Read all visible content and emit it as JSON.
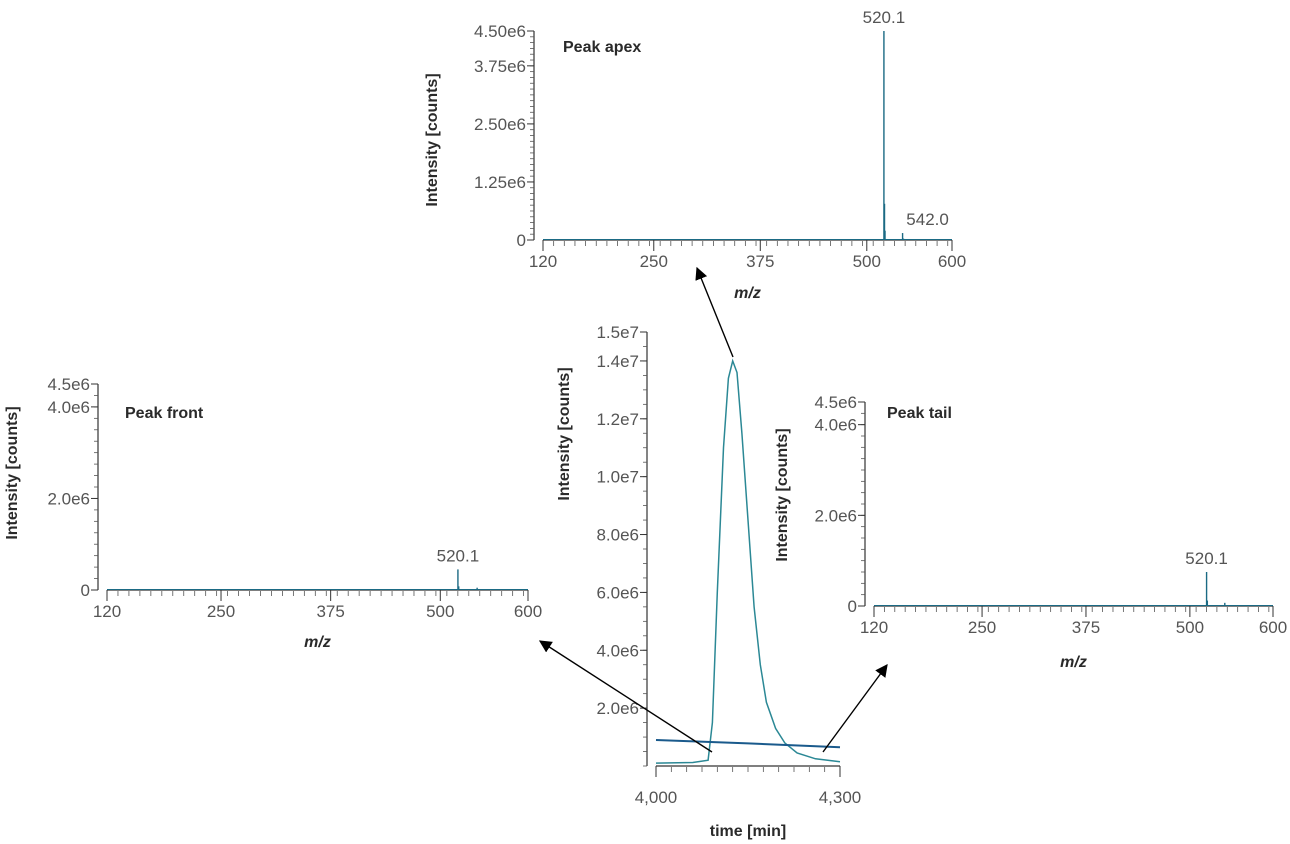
{
  "colors": {
    "spectrum": "#1b6a84",
    "chromatogram": "#2b8895",
    "baseline_trace": "#1a5a8c",
    "arrow": "#000000",
    "axis": "#333333"
  },
  "chart_data": [
    {
      "id": "peak-apex",
      "type": "bar",
      "title": "Peak apex",
      "xlabel": "m/z",
      "ylabel": "Intensity [counts]",
      "xlim": [
        120,
        600
      ],
      "ylim": [
        0,
        4500000
      ],
      "xticks": [
        120,
        250,
        375,
        500,
        600
      ],
      "xtick_labels": [
        "120",
        "250",
        "375",
        "500",
        "600"
      ],
      "yticks": [
        0,
        1250000,
        2500000,
        3750000,
        4500000
      ],
      "ytick_labels": [
        "0",
        "1.25e6",
        "2.50e6",
        "3.75e6",
        "4.50e6"
      ],
      "peaks": [
        {
          "x": 520.1,
          "y": 4500000
        },
        {
          "x": 520.8,
          "y": 780000
        },
        {
          "x": 521.4,
          "y": 200000
        },
        {
          "x": 542.0,
          "y": 150000
        },
        {
          "x": 543.0,
          "y": 30000
        },
        {
          "x": 552.0,
          "y": 20000
        }
      ],
      "annotations": [
        {
          "x": 520.1,
          "y": 4500000,
          "text": "520.1"
        },
        {
          "x": 542.0,
          "y": 150000,
          "text": "542.0"
        }
      ]
    },
    {
      "id": "peak-front",
      "type": "bar",
      "title": "Peak front",
      "xlabel": "m/z",
      "ylabel": "Intensity [counts]",
      "xlim": [
        120,
        600
      ],
      "ylim": [
        0,
        4500000
      ],
      "xticks": [
        120,
        250,
        375,
        500,
        600
      ],
      "xtick_labels": [
        "120",
        "250",
        "375",
        "500",
        "600"
      ],
      "yticks": [
        0,
        2000000,
        4000000,
        4500000
      ],
      "ytick_labels": [
        "0",
        "2.0e6",
        "4.0e6",
        "4.5e6"
      ],
      "peaks": [
        {
          "x": 520.1,
          "y": 450000
        },
        {
          "x": 521.0,
          "y": 80000
        },
        {
          "x": 542.0,
          "y": 50000
        }
      ],
      "annotations": [
        {
          "x": 520.1,
          "y": 450000,
          "text": "520.1"
        }
      ]
    },
    {
      "id": "peak-tail",
      "type": "bar",
      "title": "Peak tail",
      "xlabel": "m/z",
      "ylabel": "Intensity [counts]",
      "xlim": [
        120,
        600
      ],
      "ylim": [
        0,
        4500000
      ],
      "xticks": [
        120,
        250,
        375,
        500,
        600
      ],
      "xtick_labels": [
        "120",
        "250",
        "375",
        "500",
        "600"
      ],
      "yticks": [
        0,
        2000000,
        4000000,
        4500000
      ],
      "ytick_labels": [
        "0",
        "2.0e6",
        "4.0e6",
        "4.5e6"
      ],
      "peaks": [
        {
          "x": 520.1,
          "y": 750000
        },
        {
          "x": 521.0,
          "y": 120000
        },
        {
          "x": 542.0,
          "y": 70000
        }
      ],
      "annotations": [
        {
          "x": 520.1,
          "y": 750000,
          "text": "520.1"
        }
      ]
    },
    {
      "id": "chromatogram",
      "type": "line",
      "title": "",
      "xlabel": "time [min]",
      "ylabel": "Intensity [counts]",
      "xlim": [
        4000,
        4300
      ],
      "ylim": [
        0,
        15000000
      ],
      "xticks": [
        4000,
        4300
      ],
      "xtick_labels": [
        "4,000",
        "4,300"
      ],
      "yticks": [
        2000000,
        4000000,
        6000000,
        8000000,
        10000000,
        12000000,
        14000000,
        15000000
      ],
      "ytick_labels": [
        "2.0e6",
        "4.0e6",
        "6.0e6",
        "8.0e6",
        "1.0e7",
        "1.2e7",
        "1.4e7",
        "1.5e7"
      ],
      "series": [
        {
          "values": [
            {
              "x": 4000,
              "y": 100000
            },
            {
              "x": 4060,
              "y": 120000
            },
            {
              "x": 4085,
              "y": 200000
            },
            {
              "x": 4092,
              "y": 1500000
            },
            {
              "x": 4100,
              "y": 6000000
            },
            {
              "x": 4110,
              "y": 11000000
            },
            {
              "x": 4118,
              "y": 13400000
            },
            {
              "x": 4125,
              "y": 14000000
            },
            {
              "x": 4132,
              "y": 13600000
            },
            {
              "x": 4140,
              "y": 11500000
            },
            {
              "x": 4150,
              "y": 8500000
            },
            {
              "x": 4160,
              "y": 5500000
            },
            {
              "x": 4170,
              "y": 3500000
            },
            {
              "x": 4180,
              "y": 2200000
            },
            {
              "x": 4195,
              "y": 1300000
            },
            {
              "x": 4210,
              "y": 800000
            },
            {
              "x": 4230,
              "y": 450000
            },
            {
              "x": 4260,
              "y": 250000
            },
            {
              "x": 4300,
              "y": 150000
            }
          ]
        },
        {
          "values": [
            {
              "x": 4000,
              "y": 900000
            },
            {
              "x": 4150,
              "y": 780000
            },
            {
              "x": 4300,
              "y": 650000
            }
          ]
        }
      ]
    }
  ]
}
